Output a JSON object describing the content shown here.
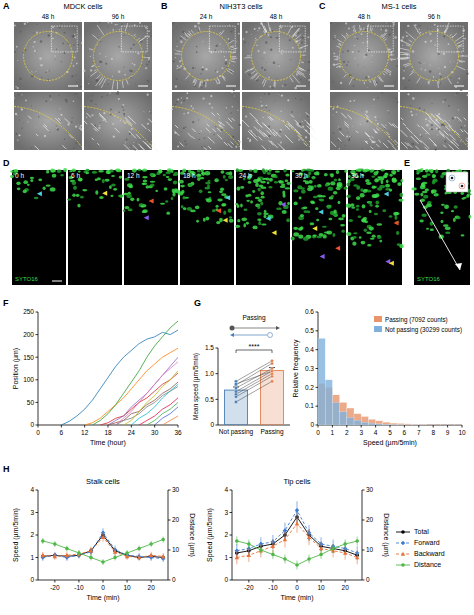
{
  "figure": {
    "panels": [
      {
        "label": "A",
        "title": "MDCK cells",
        "times": [
          "48 h",
          "96 h"
        ]
      },
      {
        "label": "B",
        "title": "NIH3T3 cells",
        "times": [
          "24 h",
          "48 h"
        ]
      },
      {
        "label": "C",
        "title": "MS-1 cells",
        "times": [
          "48 h",
          "96 h"
        ]
      },
      {
        "label": "D",
        "frames": [
          "0 h",
          "6 h",
          "12 h",
          "18 h",
          "24 h",
          "30 h",
          "36 h"
        ],
        "stain": "SYTO16"
      },
      {
        "label": "E",
        "stain": "SYTO16"
      },
      {
        "label": "F"
      },
      {
        "label": "G"
      },
      {
        "label": "H"
      }
    ]
  },
  "chart_data": [
    {
      "type": "line",
      "x_label": "Time (hour)",
      "y_label": "Position (µm)",
      "x": [
        0,
        2,
        4,
        6,
        8,
        10,
        12,
        14,
        16,
        18,
        20,
        22,
        24,
        26,
        28,
        30,
        32,
        34,
        36
      ],
      "xlim": [
        0,
        36
      ],
      "xticks": [
        0,
        6,
        12,
        18,
        24,
        30,
        36
      ],
      "ylim": [
        0,
        250
      ],
      "yticks": [
        0,
        50,
        100,
        150,
        200,
        250
      ],
      "series": [
        {
          "color": "#1f77b4",
          "values": [
            null,
            null,
            null,
            0,
            8,
            20,
            35,
            55,
            80,
            105,
            130,
            150,
            165,
            180,
            190,
            195,
            205,
            200,
            210
          ]
        },
        {
          "color": "#ff7f0e",
          "values": [
            null,
            null,
            null,
            null,
            null,
            null,
            0,
            5,
            15,
            30,
            45,
            60,
            80,
            100,
            120,
            135,
            150,
            160,
            170
          ]
        },
        {
          "color": "#2ca02c",
          "values": [
            null,
            null,
            null,
            null,
            null,
            null,
            null,
            0,
            10,
            25,
            45,
            70,
            95,
            120,
            150,
            175,
            195,
            215,
            230
          ]
        },
        {
          "color": "#d62728",
          "values": [
            null,
            null,
            null,
            null,
            null,
            null,
            null,
            null,
            0,
            5,
            15,
            20,
            35,
            50,
            60,
            75,
            90,
            100,
            115
          ]
        },
        {
          "color": "#9467bd",
          "values": [
            null,
            null,
            null,
            null,
            null,
            null,
            null,
            null,
            null,
            0,
            10,
            20,
            40,
            55,
            70,
            90,
            110,
            130,
            150
          ]
        },
        {
          "color": "#8c564b",
          "values": [
            null,
            null,
            null,
            null,
            null,
            null,
            null,
            null,
            null,
            0,
            5,
            10,
            25,
            30,
            45,
            55,
            70,
            80,
            95
          ]
        },
        {
          "color": "#e377c2",
          "values": [
            null,
            null,
            null,
            null,
            null,
            null,
            null,
            null,
            null,
            null,
            0,
            15,
            30,
            50,
            70,
            90,
            110,
            125,
            140
          ]
        },
        {
          "color": "#7f7f7f",
          "values": [
            null,
            null,
            null,
            null,
            null,
            null,
            null,
            null,
            null,
            null,
            0,
            10,
            15,
            25,
            40,
            50,
            65,
            75,
            85
          ]
        },
        {
          "color": "#bcbd22",
          "values": [
            null,
            null,
            null,
            null,
            null,
            null,
            null,
            null,
            null,
            null,
            null,
            0,
            10,
            30,
            50,
            65,
            85,
            100,
            120
          ]
        },
        {
          "color": "#17becf",
          "values": [
            null,
            null,
            null,
            null,
            null,
            null,
            null,
            null,
            null,
            null,
            null,
            null,
            0,
            15,
            25,
            40,
            60,
            75,
            90
          ]
        },
        {
          "color": "#e6194b",
          "values": [
            null,
            null,
            null,
            null,
            null,
            null,
            null,
            null,
            null,
            null,
            null,
            null,
            null,
            0,
            10,
            20,
            35,
            45,
            60
          ]
        },
        {
          "color": "#3cb44b",
          "values": [
            null,
            null,
            null,
            null,
            null,
            null,
            null,
            null,
            null,
            null,
            null,
            null,
            null,
            null,
            0,
            10,
            25,
            35,
            50
          ]
        },
        {
          "color": "#4363d8",
          "values": [
            null,
            null,
            null,
            null,
            null,
            null,
            null,
            null,
            null,
            null,
            null,
            null,
            null,
            null,
            null,
            0,
            15,
            25,
            40
          ]
        },
        {
          "color": "#f58231",
          "values": [
            null,
            null,
            null,
            null,
            null,
            null,
            null,
            null,
            null,
            null,
            null,
            null,
            null,
            null,
            null,
            null,
            0,
            10,
            20
          ]
        }
      ]
    },
    {
      "type": "bar",
      "y_label": "Mean speed (µm/5min)",
      "categories": [
        "Not passing",
        "Passing"
      ],
      "values": [
        0.68,
        1.06
      ],
      "errors": [
        0.06,
        0.06
      ],
      "points": [
        [
          0.45,
          0.55,
          0.6,
          0.65,
          0.72,
          0.78,
          0.85,
          0.8
        ],
        [
          0.85,
          0.95,
          1.0,
          1.05,
          1.1,
          1.2,
          1.25,
          1.05
        ]
      ],
      "colors": [
        "#4a7fb5",
        "#e0804f"
      ],
      "ylim": [
        0,
        1.5
      ],
      "yticks": [
        0,
        0.5,
        {
          "value": 1,
          "label": "1.0"
        },
        1.5
      ],
      "annotations": [
        "Passing",
        "****"
      ]
    },
    {
      "type": "histogram",
      "x_label": "Speed (µm/5min)",
      "y_label": "Relative frequency",
      "bins": [
        0,
        0.5,
        1,
        1.5,
        2,
        2.5,
        3,
        3.5,
        4,
        4.5,
        5,
        5.5,
        6,
        6.5,
        7,
        7.5,
        8,
        8.5,
        9,
        9.5,
        10
      ],
      "xlim": [
        0,
        10
      ],
      "xticks": [
        0,
        1,
        2,
        3,
        4,
        5,
        6,
        7,
        8,
        9,
        10
      ],
      "ylim": [
        0,
        0.6
      ],
      "yticks": [
        0,
        0.1,
        0.2,
        0.3,
        0.4,
        0.5,
        0.6
      ],
      "legend": "upper-right",
      "series": [
        {
          "name": "Passing (7092 counts)",
          "color": "#e8956b",
          "values": [
            0.22,
            0.2,
            0.16,
            0.12,
            0.09,
            0.06,
            0.045,
            0.03,
            0.022,
            0.015,
            0.01,
            0.008,
            0.006,
            0.004,
            0.003,
            0.002,
            0.002,
            0.001,
            0.001,
            0.001
          ]
        },
        {
          "name": "Not passing (30299 counts)",
          "color": "#7fb1dc",
          "values": [
            0.46,
            0.24,
            0.12,
            0.07,
            0.04,
            0.025,
            0.015,
            0.01,
            0.006,
            0.004,
            0.003,
            0.002,
            0.001,
            0.001,
            0.001,
            0,
            0,
            0,
            0,
            0
          ]
        }
      ]
    },
    {
      "type": "line",
      "title": "Stalk cells",
      "x_label": "Time (min)",
      "y_label": "Speed (µm/5min)",
      "y2_label": "Distance (µm)",
      "x": [
        -25,
        -20,
        -15,
        -10,
        -5,
        0,
        5,
        10,
        15,
        20,
        25
      ],
      "xlim": [
        -27,
        27
      ],
      "xticks": [
        -20,
        -10,
        0,
        10,
        20
      ],
      "ylim": [
        0,
        4
      ],
      "yticks": [
        0,
        1,
        2,
        3,
        4
      ],
      "y2lim": [
        0,
        30
      ],
      "y2ticks": [
        0,
        10,
        20,
        30
      ],
      "series": [
        {
          "name": "Total",
          "color": "#000000",
          "marker": "circle",
          "line_style": "solid",
          "values": [
            1.05,
            1.1,
            1.05,
            1.1,
            1.3,
            2.0,
            1.3,
            1.1,
            1.0,
            1.05,
            1.0
          ],
          "errors": [
            0.1,
            0.1,
            0.1,
            0.1,
            0.12,
            0.15,
            0.12,
            0.1,
            0.1,
            0.1,
            0.1
          ]
        },
        {
          "name": "Forward",
          "color": "#3b7dd8",
          "marker": "diamond",
          "line_style": "dashed",
          "values": [
            1.0,
            1.1,
            1.0,
            1.1,
            1.25,
            2.1,
            1.35,
            1.1,
            1.05,
            1.0,
            0.95
          ],
          "errors": [
            0.15,
            0.15,
            0.15,
            0.15,
            0.18,
            0.2,
            0.18,
            0.15,
            0.15,
            0.15,
            0.15
          ]
        },
        {
          "name": "Backward",
          "color": "#e8733a",
          "marker": "triangle",
          "line_style": "dashed",
          "values": [
            1.1,
            1.05,
            1.1,
            1.15,
            1.3,
            1.9,
            1.25,
            1.05,
            1.0,
            1.1,
            1.05
          ],
          "errors": [
            0.15,
            0.15,
            0.15,
            0.15,
            0.18,
            0.2,
            0.18,
            0.15,
            0.15,
            0.15,
            0.15
          ]
        },
        {
          "name": "Distance",
          "color": "#4fb848",
          "marker": "circle",
          "line_style": "solid",
          "axis": "y2",
          "values": [
            13,
            12,
            10.5,
            9,
            7.5,
            6,
            7.5,
            9,
            10.5,
            12,
            13.5
          ],
          "errors": [
            1,
            1,
            1,
            1,
            1,
            1,
            1,
            1,
            1,
            1,
            1
          ]
        }
      ]
    },
    {
      "type": "line",
      "title": "Tip cells",
      "x_label": "Time (min)",
      "y_label": "Speed (µm/5min)",
      "y2_label": "Distance (µm)",
      "x": [
        -25,
        -20,
        -15,
        -10,
        -5,
        0,
        5,
        10,
        15,
        20,
        25
      ],
      "xlim": [
        -27,
        27
      ],
      "xticks": [
        -20,
        -10,
        0,
        10,
        20
      ],
      "ylim": [
        0,
        4
      ],
      "yticks": [
        0,
        1,
        2,
        3,
        4
      ],
      "y2lim": [
        0,
        30
      ],
      "y2ticks": [
        0,
        10,
        20,
        30
      ],
      "legend": "right",
      "series": [
        {
          "name": "Total",
          "color": "#000000",
          "marker": "circle",
          "line_style": "solid",
          "values": [
            1.2,
            1.3,
            1.5,
            1.6,
            2.0,
            2.8,
            2.0,
            1.5,
            1.4,
            1.3,
            1.1
          ],
          "errors": [
            0.15,
            0.15,
            0.18,
            0.2,
            0.25,
            0.3,
            0.25,
            0.2,
            0.18,
            0.15,
            0.15
          ]
        },
        {
          "name": "Forward",
          "color": "#3b7dd8",
          "marker": "diamond",
          "line_style": "dashed",
          "values": [
            1.3,
            1.4,
            1.6,
            1.7,
            2.2,
            3.1,
            2.1,
            1.6,
            1.5,
            1.4,
            1.2
          ],
          "errors": [
            0.3,
            0.3,
            0.3,
            0.3,
            0.35,
            0.4,
            0.35,
            0.3,
            0.3,
            0.3,
            0.3
          ]
        },
        {
          "name": "Backward",
          "color": "#e8733a",
          "marker": "triangle",
          "line_style": "dashed",
          "values": [
            1.0,
            1.1,
            1.3,
            1.5,
            1.8,
            2.5,
            1.9,
            1.4,
            1.3,
            1.2,
            1.0
          ],
          "errors": [
            0.3,
            0.3,
            0.3,
            0.3,
            0.35,
            0.4,
            0.35,
            0.3,
            0.3,
            0.3,
            0.3
          ]
        },
        {
          "name": "Distance",
          "color": "#4fb848",
          "marker": "circle",
          "line_style": "solid",
          "axis": "y2",
          "values": [
            13,
            12,
            10,
            8.5,
            7,
            5,
            7,
            8.5,
            10.5,
            12,
            13
          ],
          "errors": [
            1.5,
            1.5,
            1.5,
            1.5,
            1.5,
            1.5,
            1.5,
            1.5,
            1.5,
            1.5,
            1.5
          ]
        }
      ]
    }
  ]
}
